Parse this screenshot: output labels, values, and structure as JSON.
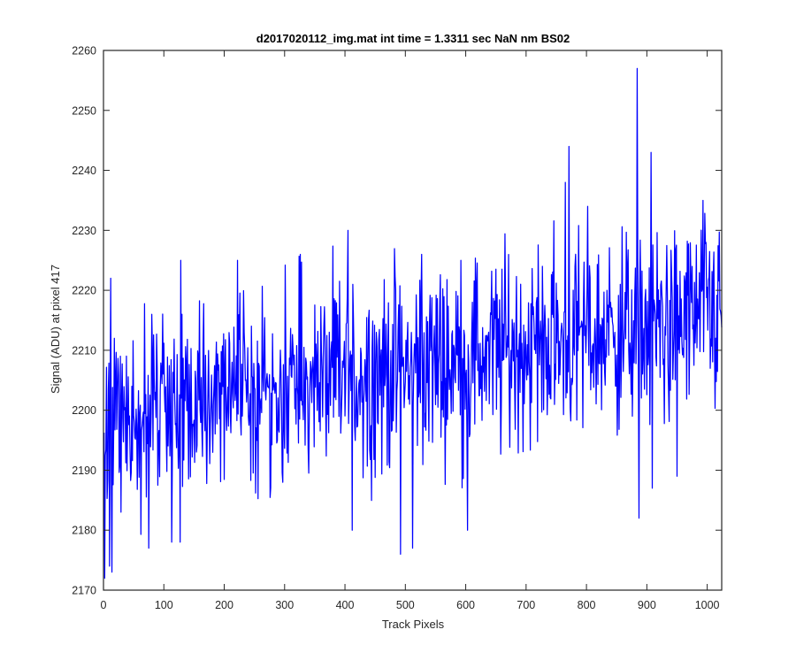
{
  "chart_data": {
    "type": "line",
    "title": "d2017020112_img.mat int time = 1.3311 sec  NaN nm BS02",
    "xlabel": "Track Pixels",
    "ylabel": "Signal (ADU) at pixel 417",
    "xlim": [
      0,
      1024
    ],
    "ylim": [
      2170,
      2260
    ],
    "xticks": [
      0,
      100,
      200,
      300,
      400,
      500,
      600,
      700,
      800,
      900,
      1000
    ],
    "yticks": [
      2170,
      2180,
      2190,
      2200,
      2210,
      2220,
      2230,
      2240,
      2250,
      2260
    ],
    "xtick_labels": [
      "0",
      "100",
      "200",
      "300",
      "400",
      "500",
      "600",
      "700",
      "800",
      "900",
      "1000"
    ],
    "ytick_labels": [
      "2170",
      "2180",
      "2190",
      "2200",
      "2210",
      "2220",
      "2230",
      "2240",
      "2250",
      "2260"
    ],
    "grid": false,
    "box": true,
    "series": [
      {
        "color": "#0000ff",
        "x_start": 1,
        "x_step": 1,
        "n_points": 1024,
        "trend_start": 2199,
        "trend_end": 2216,
        "noise_amplitude": 8,
        "peaks": [
          {
            "x": 2,
            "y": 2172
          },
          {
            "x": 10,
            "y": 2174
          },
          {
            "x": 12,
            "y": 2222
          },
          {
            "x": 14,
            "y": 2173
          },
          {
            "x": 18,
            "y": 2212
          },
          {
            "x": 28,
            "y": 2209
          },
          {
            "x": 75,
            "y": 2177
          },
          {
            "x": 80,
            "y": 2216
          },
          {
            "x": 113,
            "y": 2178
          },
          {
            "x": 127,
            "y": 2178
          },
          {
            "x": 128,
            "y": 2225
          },
          {
            "x": 222,
            "y": 2225
          },
          {
            "x": 326,
            "y": 2226
          },
          {
            "x": 405,
            "y": 2230
          },
          {
            "x": 412,
            "y": 2180
          },
          {
            "x": 492,
            "y": 2176
          },
          {
            "x": 512,
            "y": 2177
          },
          {
            "x": 527,
            "y": 2226
          },
          {
            "x": 603,
            "y": 2180
          },
          {
            "x": 727,
            "y": 2224
          },
          {
            "x": 765,
            "y": 2238
          },
          {
            "x": 771,
            "y": 2244
          },
          {
            "x": 802,
            "y": 2234
          },
          {
            "x": 884,
            "y": 2257
          },
          {
            "x": 887,
            "y": 2182
          },
          {
            "x": 907,
            "y": 2243
          },
          {
            "x": 909,
            "y": 2187
          },
          {
            "x": 950,
            "y": 2189
          },
          {
            "x": 993,
            "y": 2235
          }
        ]
      }
    ]
  }
}
